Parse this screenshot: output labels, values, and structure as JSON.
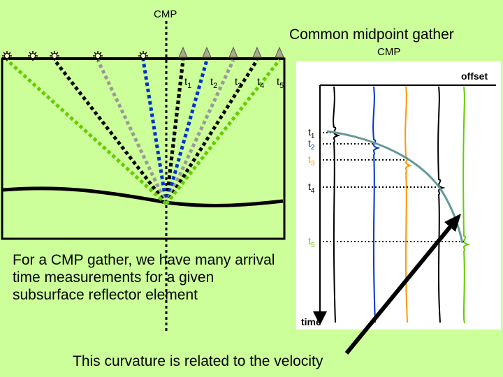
{
  "titles": {
    "cmp_top": "CMP",
    "gather": "Common midpoint gather",
    "gather_cmp": "CMP"
  },
  "geometry_panel": {
    "time_labels": [
      "t",
      "t",
      "t",
      "t",
      "t"
    ],
    "time_subs": [
      "1",
      "2",
      "3",
      "4",
      "5"
    ],
    "ray_colors": [
      "#000000",
      "#0033cc",
      "#999999",
      "#000000",
      "#66cc00"
    ]
  },
  "seismogram_panel": {
    "offset_label": "offset",
    "time_label": "time",
    "pick_labels": [
      "t",
      "t",
      "t",
      "t",
      "t"
    ],
    "pick_subs": [
      "1",
      "2",
      "3",
      "4",
      "5"
    ],
    "pick_colors": [
      "#000000",
      "#0033cc",
      "#ff9900",
      "#000000",
      "#66cc00"
    ],
    "curve_color": "#669999"
  },
  "note": "For a CMP gather, we have many arrival time measurements for a given subsurface reflector element",
  "caption": "This curvature is related to the velocity"
}
